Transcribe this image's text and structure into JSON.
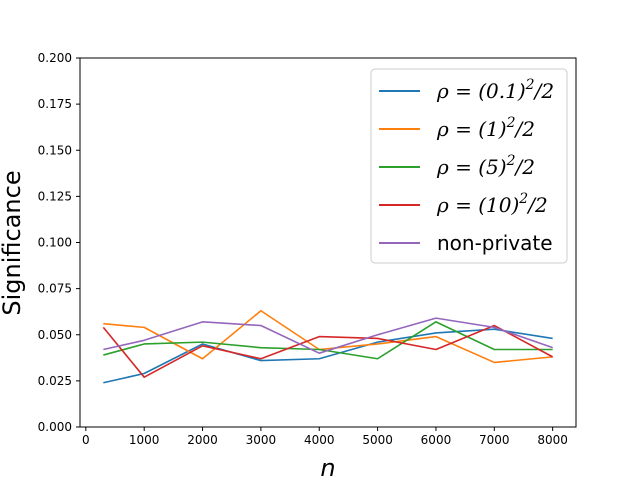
{
  "chart_data": {
    "type": "line",
    "title": "",
    "xlabel": "n",
    "ylabel": "Significance",
    "xlim": [
      -100,
      8400
    ],
    "ylim": [
      0.0,
      0.2
    ],
    "x_ticks": [
      0,
      1000,
      2000,
      3000,
      4000,
      5000,
      6000,
      7000,
      8000
    ],
    "y_ticks": [
      0.0,
      0.025,
      0.05,
      0.075,
      0.1,
      0.125,
      0.15,
      0.175,
      0.2
    ],
    "x_tick_labels": [
      "0",
      "1000",
      "2000",
      "3000",
      "4000",
      "5000",
      "6000",
      "7000",
      "8000"
    ],
    "y_tick_labels": [
      "0.000",
      "0.025",
      "0.050",
      "0.075",
      "0.100",
      "0.125",
      "0.150",
      "0.175",
      "0.200"
    ],
    "grid": false,
    "legend_position": "top-right",
    "x": [
      300,
      1000,
      2000,
      3000,
      4000,
      5000,
      6000,
      7000,
      8000
    ],
    "series": [
      {
        "name": "ρ = (0.1)²/2",
        "legend": {
          "base": "ρ = (0.1)",
          "sup": "2",
          "tail": "/2"
        },
        "color": "#1f77b4",
        "values": [
          0.024,
          0.029,
          0.045,
          0.036,
          0.037,
          0.046,
          0.051,
          0.053,
          0.048
        ]
      },
      {
        "name": "ρ = (1)²/2",
        "legend": {
          "base": "ρ = (1)",
          "sup": "2",
          "tail": "/2"
        },
        "color": "#ff7f0e",
        "values": [
          0.056,
          0.054,
          0.037,
          0.063,
          0.042,
          0.045,
          0.049,
          0.035,
          0.038
        ]
      },
      {
        "name": "ρ = (5)²/2",
        "legend": {
          "base": "ρ = (5)",
          "sup": "2",
          "tail": "/2"
        },
        "color": "#2ca02c",
        "values": [
          0.039,
          0.045,
          0.046,
          0.043,
          0.042,
          0.037,
          0.057,
          0.042,
          0.042
        ]
      },
      {
        "name": "ρ = (10)²/2",
        "legend": {
          "base": "ρ = (10)",
          "sup": "2",
          "tail": "/2"
        },
        "color": "#d62728",
        "values": [
          0.054,
          0.027,
          0.044,
          0.037,
          0.049,
          0.048,
          0.042,
          0.055,
          0.038
        ]
      },
      {
        "name": "non-private",
        "legend": {
          "base": "non-private",
          "sup": "",
          "tail": ""
        },
        "color": "#9467bd",
        "values": [
          0.042,
          0.047,
          0.057,
          0.055,
          0.04,
          0.05,
          0.059,
          0.054,
          0.043
        ]
      }
    ]
  }
}
